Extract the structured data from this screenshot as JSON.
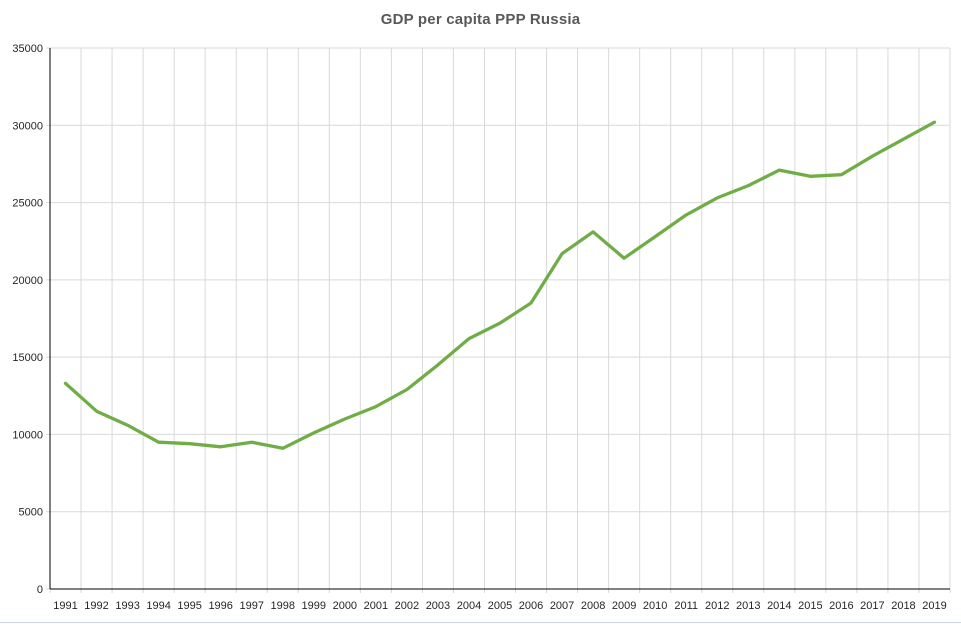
{
  "title": "GDP per capita PPP Russia",
  "chart_data": {
    "type": "line",
    "title": "GDP per capita PPP Russia",
    "categories": [
      "1991",
      "1992",
      "1993",
      "1994",
      "1995",
      "1996",
      "1997",
      "1998",
      "1999",
      "2000",
      "2001",
      "2002",
      "2003",
      "2004",
      "2005",
      "2006",
      "2007",
      "2008",
      "2009",
      "2010",
      "2011",
      "2012",
      "2013",
      "2014",
      "2015",
      "2016",
      "2017",
      "2018",
      "2019"
    ],
    "series": [
      {
        "name": "GDP per capita PPP",
        "values": [
          13300,
          11500,
          10600,
          9500,
          9400,
          9200,
          9500,
          9100,
          10100,
          11000,
          11800,
          12900,
          14500,
          16200,
          17200,
          18500,
          21700,
          23100,
          21400,
          22800,
          24200,
          25300,
          26100,
          27100,
          26700,
          26800,
          28000,
          29100,
          30200
        ]
      }
    ],
    "xlabel": "",
    "ylabel": "",
    "ylim": [
      0,
      35000
    ],
    "yticks": [
      0,
      5000,
      10000,
      15000,
      20000,
      25000,
      30000,
      35000
    ],
    "grid": true,
    "legend": "none",
    "markers": "none",
    "colors": {
      "line": "#70AD47",
      "gridline": "#D9D9D9",
      "axis_line": "#000000",
      "tick_label": "#262626",
      "title": "#595959",
      "background": "#FFFFFF"
    }
  }
}
